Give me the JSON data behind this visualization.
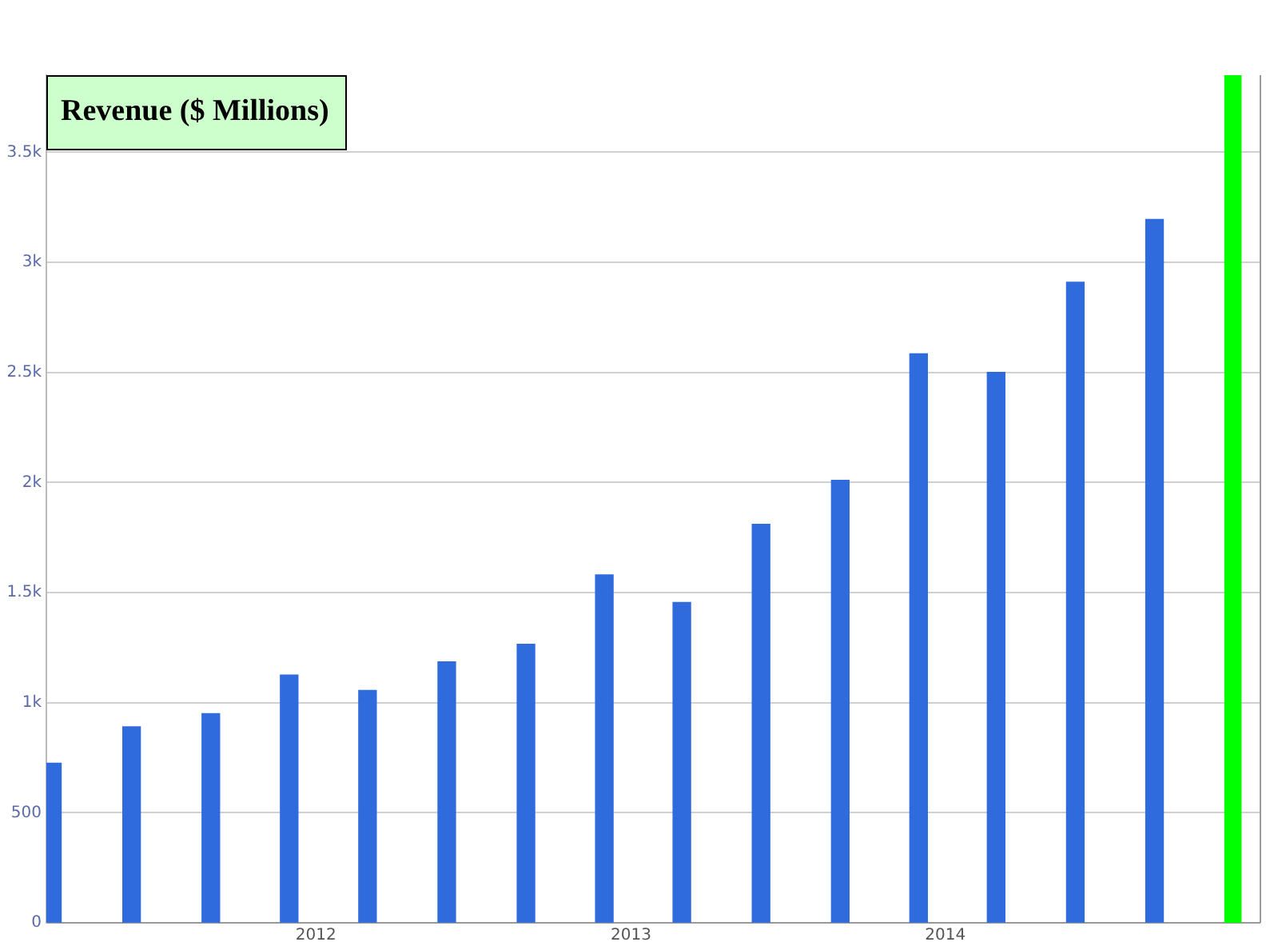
{
  "chart_data": {
    "type": "bar",
    "title": "Revenue ($ Millions)",
    "x": [
      "2011-03",
      "2011-06",
      "2011-09",
      "2011-12",
      "2012-03",
      "2012-06",
      "2012-09",
      "2012-12",
      "2013-03",
      "2013-06",
      "2013-09",
      "2013-12",
      "2014-03",
      "2014-06",
      "2014-09"
    ],
    "values": [
      725,
      890,
      950,
      1125,
      1055,
      1185,
      1265,
      1580,
      1455,
      1810,
      2010,
      2585,
      2500,
      2910,
      3195
    ],
    "color": "#2f6bdc",
    "xlim": [
      "2011-02-22",
      "2015-01-01"
    ],
    "xticks": [
      "2012",
      "2013",
      "2014"
    ],
    "ylim": [
      0,
      3850
    ],
    "yticks": [
      0,
      500,
      {
        "value": 1000,
        "label": "1k"
      },
      {
        "value": 1500,
        "label": "1.5k"
      },
      {
        "value": 2000,
        "label": "2k"
      },
      {
        "value": 2500,
        "label": "2.5k"
      },
      {
        "value": 3000,
        "label": "3k"
      },
      {
        "value": 3500,
        "label": "3.5k"
      }
    ],
    "bands": [
      {
        "axis": "x",
        "from": "2014-11-21",
        "to": "2014-12-11",
        "color": "#00ff00"
      }
    ],
    "grid": "y",
    "legend": false
  }
}
